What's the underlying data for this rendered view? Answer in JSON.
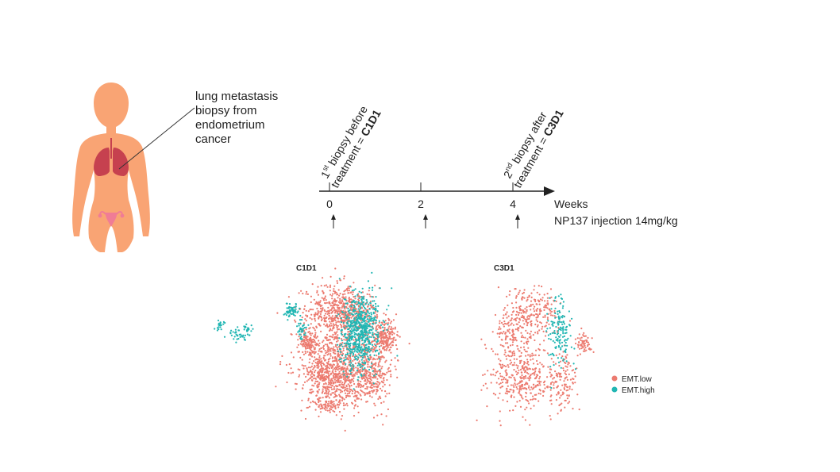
{
  "colors": {
    "body": "#f9a474",
    "lungs": "#c6414f",
    "uterus": "#f07c96",
    "emt_low": "#ec7b70",
    "emt_high": "#21b6b3",
    "axis": "#222222"
  },
  "icons": {
    "figure": "female-body-silhouette-icon",
    "lungs": "lungs-icon",
    "uterus": "uterus-icon"
  },
  "caption": {
    "lines": [
      "lung metastasis",
      "biopsy from",
      "endometrium",
      "cancer"
    ]
  },
  "timeline": {
    "axis_label": "Weeks",
    "ticks": [
      "0",
      "2",
      "4"
    ],
    "injection_label": "NP137 injection 14mg/kg",
    "biopsy1": {
      "line1_prefix": "1",
      "line1_sup": "st",
      "line1_suffix": " biopsy before",
      "line2_prefix": "treatment = ",
      "line2_bold": "C1D1"
    },
    "biopsy2": {
      "line1_prefix": "2",
      "line1_sup": "nd",
      "line1_suffix": " biopsy after",
      "line2_prefix": "treatment = ",
      "line2_bold": "C3D1"
    }
  },
  "umap": {
    "panels": [
      {
        "title": "C1D1"
      },
      {
        "title": "C3D1"
      }
    ],
    "legend": [
      {
        "label": "EMT.low",
        "color": "#ec7b70"
      },
      {
        "label": "EMT.high",
        "color": "#21b6b3"
      }
    ]
  }
}
